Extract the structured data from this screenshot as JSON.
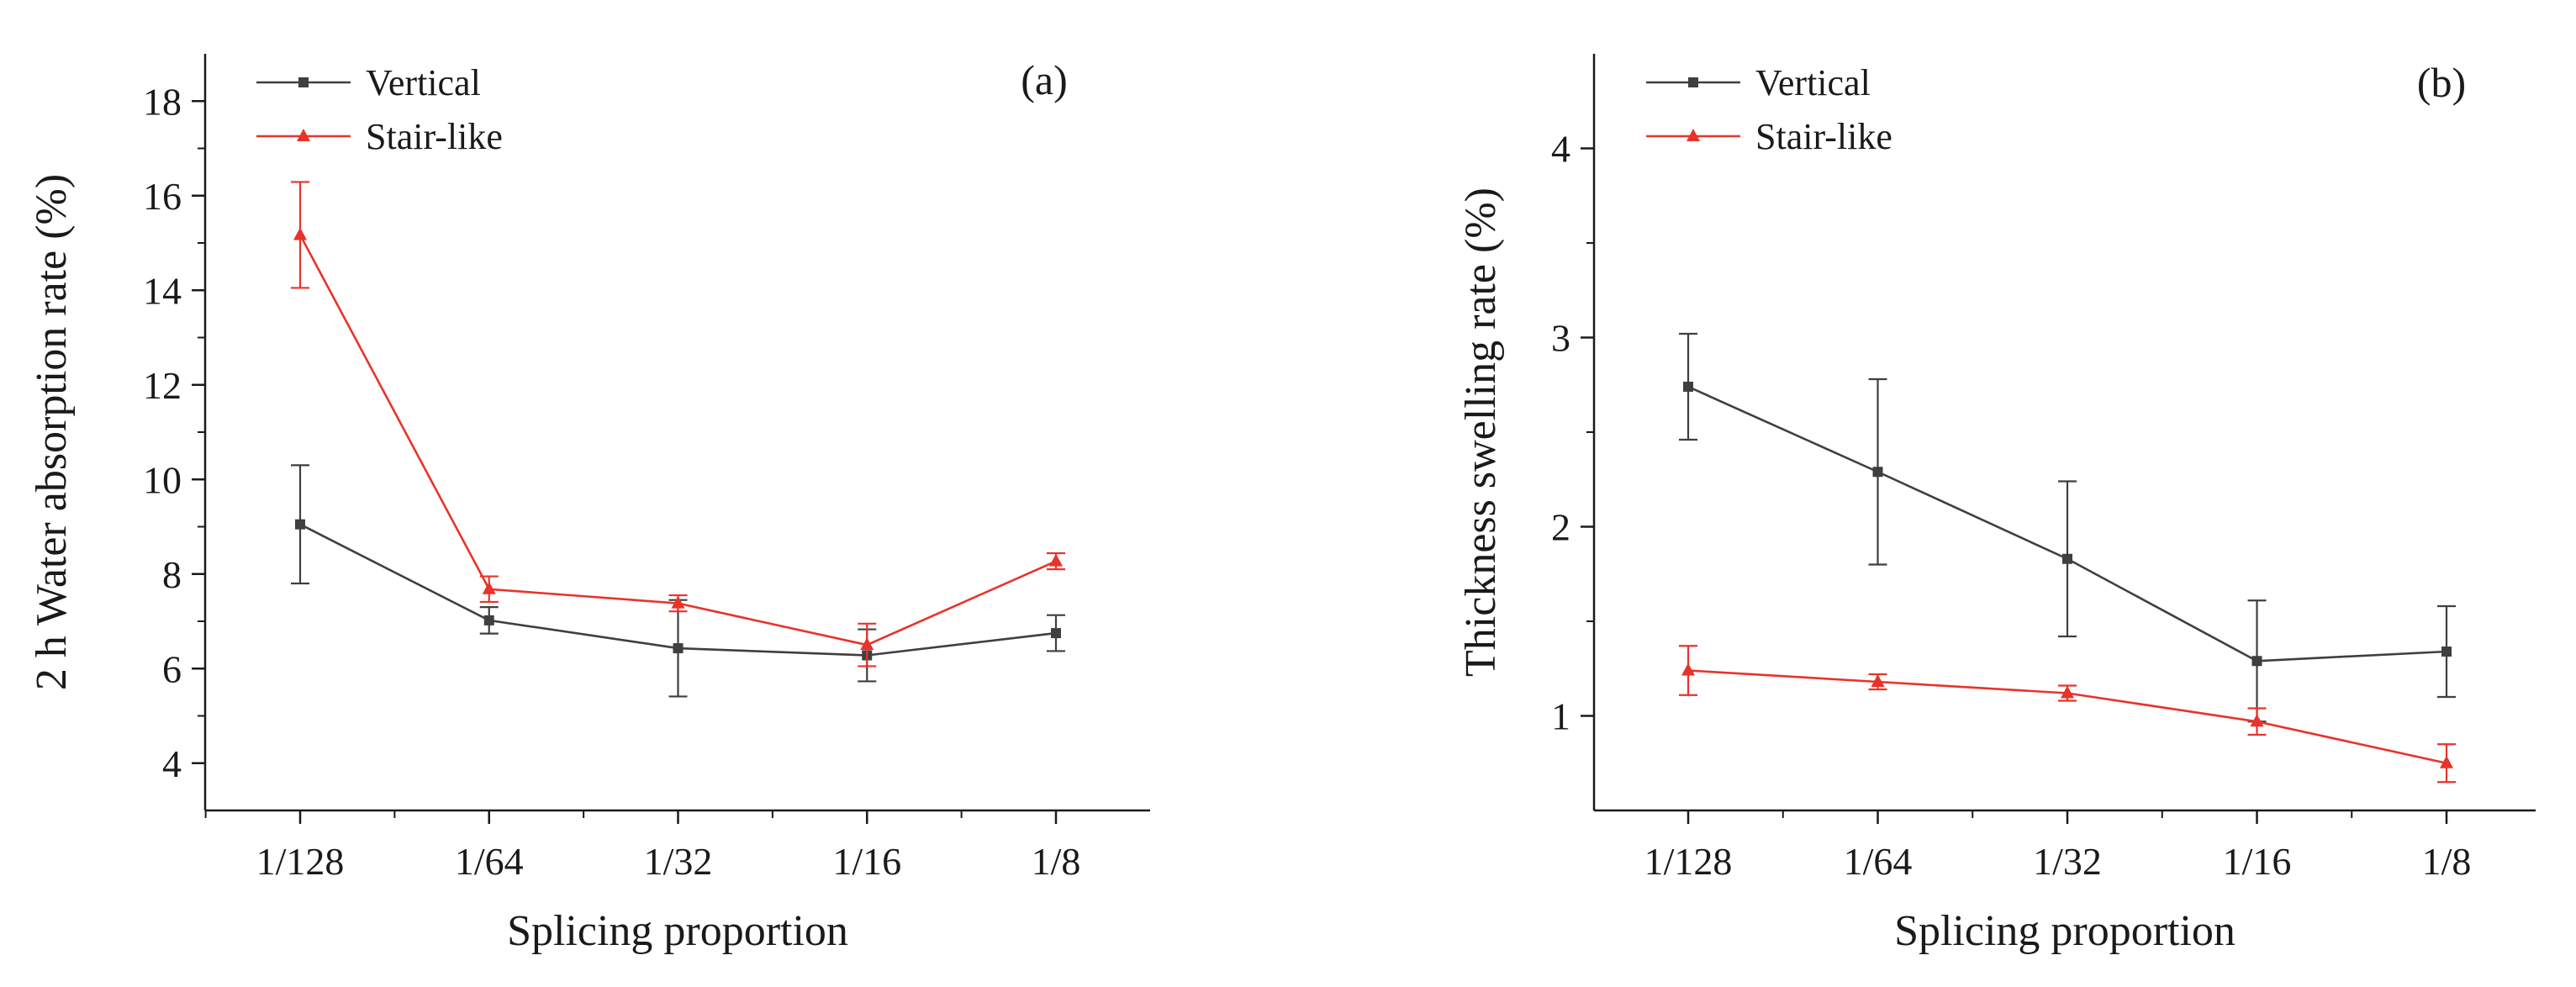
{
  "chart_data": [
    {
      "panel_label": "(a)",
      "type": "line",
      "xlabel": "Splicing proportion",
      "ylabel": "2 h Water absorption rate (%)",
      "categories": [
        "1/128",
        "1/64",
        "1/32",
        "1/16",
        "1/8"
      ],
      "ylim": [
        3,
        19
      ],
      "yticks": [
        4,
        6,
        8,
        10,
        12,
        14,
        16,
        18
      ],
      "legend_position": "top-left",
      "grid": false,
      "series": [
        {
          "name": "Vertical",
          "color": "#3f3f3f",
          "marker": "square",
          "values": [
            9.05,
            7.02,
            6.43,
            6.28,
            6.75
          ],
          "errors": [
            1.25,
            0.28,
            1.02,
            0.55,
            0.38
          ]
        },
        {
          "name": "Stair-like",
          "color": "#e8332a",
          "marker": "triangle",
          "values": [
            15.17,
            7.68,
            7.38,
            6.5,
            8.27
          ],
          "errors": [
            1.12,
            0.27,
            0.17,
            0.45,
            0.17
          ]
        }
      ]
    },
    {
      "panel_label": "(b)",
      "type": "line",
      "xlabel": "Splicing  proportion",
      "ylabel": "Thickness swelling rate (%)",
      "categories": [
        "1/128",
        "1/64",
        "1/32",
        "1/16",
        "1/8"
      ],
      "ylim": [
        0.5,
        4.5
      ],
      "yticks": [
        1,
        2,
        3,
        4
      ],
      "legend_position": "top-left",
      "grid": false,
      "series": [
        {
          "name": "Vertical",
          "color": "#3f3f3f",
          "marker": "square",
          "values": [
            2.74,
            2.29,
            1.83,
            1.29,
            1.34
          ],
          "errors": [
            0.28,
            0.49,
            0.41,
            0.32,
            0.24
          ]
        },
        {
          "name": "Stair-like",
          "color": "#e8332a",
          "marker": "triangle",
          "values": [
            1.24,
            1.18,
            1.12,
            0.97,
            0.75
          ],
          "errors": [
            0.13,
            0.04,
            0.04,
            0.07,
            0.1
          ]
        }
      ]
    }
  ]
}
